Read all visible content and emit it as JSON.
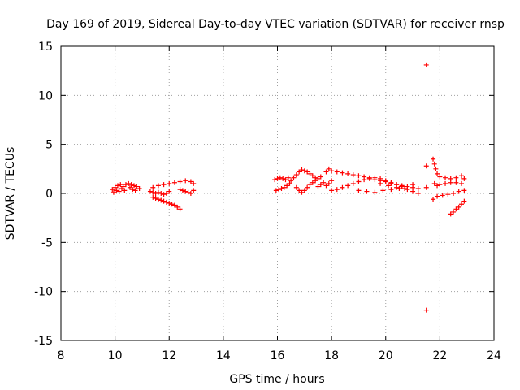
{
  "chart_data": {
    "type": "scatter",
    "title": "Day 169 of 2019, Sidereal Day-to-day VTEC variation (SDTVAR) for receiver rnsp",
    "xlabel": "GPS time / hours",
    "ylabel": "SDTVAR / TECUs",
    "xlim": [
      8,
      24
    ],
    "ylim": [
      -15,
      15
    ],
    "xticks": [
      8,
      10,
      12,
      14,
      16,
      18,
      20,
      22,
      24
    ],
    "yticks": [
      -15,
      -10,
      -5,
      0,
      5,
      10,
      15
    ],
    "grid": true,
    "marker": "+",
    "color": "#ff0000",
    "series": [
      {
        "name": "SDTVAR",
        "points": [
          [
            9.9,
            0.4
          ],
          [
            10.0,
            0.6
          ],
          [
            10.1,
            0.8
          ],
          [
            10.2,
            0.9
          ],
          [
            10.3,
            0.7
          ],
          [
            10.4,
            0.9
          ],
          [
            10.5,
            1.0
          ],
          [
            10.6,
            0.9
          ],
          [
            10.7,
            0.8
          ],
          [
            10.8,
            0.7
          ],
          [
            10.9,
            0.5
          ],
          [
            9.95,
            0.1
          ],
          [
            10.05,
            0.3
          ],
          [
            10.15,
            0.2
          ],
          [
            10.25,
            0.5
          ],
          [
            10.35,
            0.3
          ],
          [
            10.55,
            0.6
          ],
          [
            10.65,
            0.4
          ],
          [
            10.75,
            0.3
          ],
          [
            11.4,
            -0.4
          ],
          [
            11.5,
            -0.5
          ],
          [
            11.6,
            -0.6
          ],
          [
            11.7,
            -0.7
          ],
          [
            11.8,
            -0.8
          ],
          [
            11.9,
            -0.9
          ],
          [
            12.0,
            -1.0
          ],
          [
            12.1,
            -1.1
          ],
          [
            12.2,
            -1.2
          ],
          [
            12.3,
            -1.4
          ],
          [
            12.4,
            -1.6
          ],
          [
            11.3,
            0.2
          ],
          [
            11.4,
            0.1
          ],
          [
            11.5,
            0.0
          ],
          [
            11.6,
            0.1
          ],
          [
            11.7,
            0.0
          ],
          [
            11.8,
            -0.1
          ],
          [
            11.9,
            0.0
          ],
          [
            12.0,
            0.2
          ],
          [
            11.4,
            0.6
          ],
          [
            11.6,
            0.8
          ],
          [
            11.8,
            0.9
          ],
          [
            12.0,
            1.0
          ],
          [
            12.2,
            1.1
          ],
          [
            12.4,
            1.2
          ],
          [
            12.6,
            1.3
          ],
          [
            12.8,
            1.2
          ],
          [
            12.9,
            1.0
          ],
          [
            12.4,
            0.4
          ],
          [
            12.5,
            0.3
          ],
          [
            12.6,
            0.2
          ],
          [
            12.7,
            0.1
          ],
          [
            12.8,
            0.0
          ],
          [
            12.9,
            0.3
          ],
          [
            15.9,
            1.4
          ],
          [
            16.0,
            1.5
          ],
          [
            16.1,
            1.6
          ],
          [
            16.2,
            1.5
          ],
          [
            16.3,
            1.4
          ],
          [
            16.4,
            1.6
          ],
          [
            15.95,
            0.3
          ],
          [
            16.05,
            0.4
          ],
          [
            16.15,
            0.5
          ],
          [
            16.25,
            0.6
          ],
          [
            16.35,
            0.8
          ],
          [
            16.45,
            1.0
          ],
          [
            16.5,
            1.3
          ],
          [
            16.6,
            1.6
          ],
          [
            16.7,
            1.9
          ],
          [
            16.8,
            2.2
          ],
          [
            16.9,
            2.4
          ],
          [
            17.0,
            2.3
          ],
          [
            17.1,
            2.2
          ],
          [
            17.2,
            2.0
          ],
          [
            17.3,
            1.8
          ],
          [
            17.4,
            1.6
          ],
          [
            17.5,
            1.5
          ],
          [
            17.6,
            1.7
          ],
          [
            16.7,
            0.6
          ],
          [
            16.8,
            0.3
          ],
          [
            16.9,
            0.1
          ],
          [
            17.0,
            0.3
          ],
          [
            17.1,
            0.6
          ],
          [
            17.2,
            0.9
          ],
          [
            17.3,
            1.1
          ],
          [
            17.4,
            1.3
          ],
          [
            17.5,
            0.7
          ],
          [
            17.6,
            0.9
          ],
          [
            17.7,
            1.1
          ],
          [
            17.8,
            0.8
          ],
          [
            17.9,
            1.0
          ],
          [
            18.0,
            1.3
          ],
          [
            17.8,
            2.2
          ],
          [
            17.9,
            2.5
          ],
          [
            18.0,
            2.3
          ],
          [
            18.2,
            2.2
          ],
          [
            18.4,
            2.1
          ],
          [
            18.6,
            2.0
          ],
          [
            18.8,
            1.9
          ],
          [
            19.0,
            1.8
          ],
          [
            19.2,
            1.7
          ],
          [
            19.4,
            1.6
          ],
          [
            19.6,
            1.4
          ],
          [
            19.8,
            1.3
          ],
          [
            20.0,
            1.2
          ],
          [
            20.2,
            1.0
          ],
          [
            20.4,
            0.9
          ],
          [
            20.6,
            0.8
          ],
          [
            20.8,
            0.7
          ],
          [
            21.0,
            0.6
          ],
          [
            21.2,
            0.5
          ],
          [
            18.0,
            0.3
          ],
          [
            18.2,
            0.4
          ],
          [
            18.4,
            0.6
          ],
          [
            18.6,
            0.8
          ],
          [
            18.8,
            1.0
          ],
          [
            19.0,
            1.2
          ],
          [
            19.2,
            1.4
          ],
          [
            19.4,
            1.5
          ],
          [
            19.6,
            1.6
          ],
          [
            19.8,
            1.5
          ],
          [
            20.0,
            1.3
          ],
          [
            20.2,
            1.1
          ],
          [
            20.4,
            0.9
          ],
          [
            20.6,
            0.7
          ],
          [
            19.0,
            0.3
          ],
          [
            19.3,
            0.2
          ],
          [
            19.6,
            0.1
          ],
          [
            19.9,
            0.3
          ],
          [
            20.2,
            0.4
          ],
          [
            20.5,
            0.5
          ],
          [
            20.8,
            0.4
          ],
          [
            21.0,
            0.2
          ],
          [
            21.2,
            0.0
          ],
          [
            19.8,
            1.0
          ],
          [
            20.1,
            0.8
          ],
          [
            20.4,
            0.6
          ],
          [
            20.7,
            0.5
          ],
          [
            21.0,
            0.9
          ],
          [
            21.5,
            13.1
          ],
          [
            21.5,
            2.8
          ],
          [
            21.5,
            0.6
          ],
          [
            21.5,
            -11.9
          ],
          [
            21.75,
            3.5
          ],
          [
            21.8,
            3.0
          ],
          [
            21.85,
            2.5
          ],
          [
            21.9,
            2.0
          ],
          [
            22.0,
            1.7
          ],
          [
            22.2,
            1.6
          ],
          [
            22.4,
            1.5
          ],
          [
            22.6,
            1.6
          ],
          [
            22.8,
            1.8
          ],
          [
            22.9,
            1.5
          ],
          [
            21.8,
            1.0
          ],
          [
            21.9,
            0.8
          ],
          [
            22.0,
            0.9
          ],
          [
            22.2,
            1.0
          ],
          [
            22.4,
            1.1
          ],
          [
            22.6,
            1.1
          ],
          [
            22.8,
            1.0
          ],
          [
            21.75,
            -0.6
          ],
          [
            21.9,
            -0.3
          ],
          [
            22.1,
            -0.2
          ],
          [
            22.3,
            -0.1
          ],
          [
            22.5,
            0.0
          ],
          [
            22.7,
            0.2
          ],
          [
            22.9,
            0.3
          ],
          [
            22.4,
            -2.1
          ],
          [
            22.5,
            -1.9
          ],
          [
            22.6,
            -1.6
          ],
          [
            22.7,
            -1.4
          ],
          [
            22.8,
            -1.1
          ],
          [
            22.9,
            -0.8
          ]
        ]
      }
    ]
  }
}
